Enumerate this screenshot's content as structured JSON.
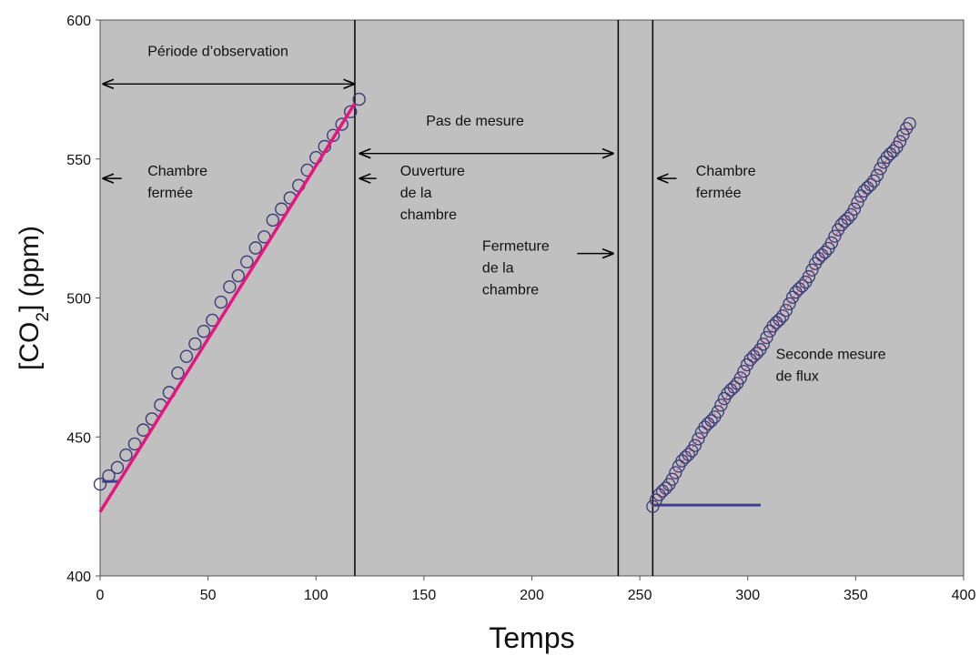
{
  "chart_data": {
    "type": "scatter",
    "xlabel": "Temps",
    "ylabel_parts": {
      "open": "[CO",
      "sub": "2",
      "close": "] (ppm)"
    },
    "xlim": [
      0,
      400
    ],
    "ylim": [
      400,
      600
    ],
    "xticks": [
      0,
      50,
      100,
      150,
      200,
      250,
      300,
      350,
      400
    ],
    "yticks": [
      400,
      450,
      500,
      550,
      600
    ],
    "grid": false,
    "legend": "none",
    "colors": {
      "plot_bg": "#c0c0c0",
      "marker": "#3d3a78",
      "fit_line": "#e6157f",
      "baseline": "#3f3f8f",
      "vline": "#000000"
    },
    "series": [
      {
        "marker": "open-circle",
        "x": [
          0,
          4,
          8,
          12,
          16,
          20,
          24,
          28,
          32,
          36,
          40,
          44,
          48,
          52,
          56,
          60,
          64,
          68,
          72,
          76,
          80,
          84,
          88,
          92,
          96,
          100,
          104,
          108,
          112,
          116,
          120
        ],
        "y": [
          433,
          436,
          439,
          443.5,
          447.5,
          452.5,
          456.5,
          461.5,
          466,
          473,
          479,
          483.5,
          488,
          492,
          498.5,
          504,
          508,
          513,
          518,
          522,
          528,
          532,
          536,
          540.5,
          546,
          550.5,
          554.5,
          558.5,
          562.5,
          567,
          571.5
        ]
      },
      {
        "marker": "open-circle",
        "x": [
          256,
          375
        ],
        "y": [
          425,
          562
        ],
        "n_points": 80
      },
      {
        "marker": "line",
        "x": [
          0,
          118
        ],
        "y": [
          423,
          570
        ]
      },
      {
        "marker": "line",
        "x": [
          1,
          9
        ],
        "y": [
          434,
          434
        ]
      },
      {
        "marker": "line",
        "x": [
          256,
          306
        ],
        "y": [
          425.5,
          425.5
        ]
      }
    ],
    "vlines": [
      118,
      240,
      256
    ],
    "arrows": [
      {
        "x_from": 118,
        "x_to": 1,
        "y": 577,
        "both": true
      },
      {
        "x_from": 120,
        "x_to": 238,
        "y": 552,
        "both": true
      },
      {
        "x_from": 10,
        "x_to": 1,
        "y": 543,
        "both": false
      },
      {
        "x_from": 128,
        "x_to": 120,
        "y": 543,
        "both": false
      },
      {
        "x_from": 267,
        "x_to": 258,
        "y": 543,
        "both": false
      },
      {
        "x_from": 221,
        "x_to": 238,
        "y": 516,
        "both": false
      }
    ],
    "annotations": [
      {
        "lines": [
          "Période d’observation"
        ],
        "x": 22,
        "y": 587
      },
      {
        "lines": [
          "Pas de mesure"
        ],
        "x": 151,
        "y": 562
      },
      {
        "lines": [
          "Chambre",
          "fermée"
        ],
        "x": 22,
        "y": 544
      },
      {
        "lines": [
          "Ouverture",
          "de la",
          "chambre"
        ],
        "x": 139,
        "y": 544
      },
      {
        "lines": [
          "Chambre",
          "fermée"
        ],
        "x": 276,
        "y": 544
      },
      {
        "lines": [
          "Fermeture",
          "de la",
          "chambre"
        ],
        "x": 177,
        "y": 517
      },
      {
        "lines": [
          "Seconde mesure",
          "de flux"
        ],
        "x": 313,
        "y": 478
      }
    ]
  }
}
